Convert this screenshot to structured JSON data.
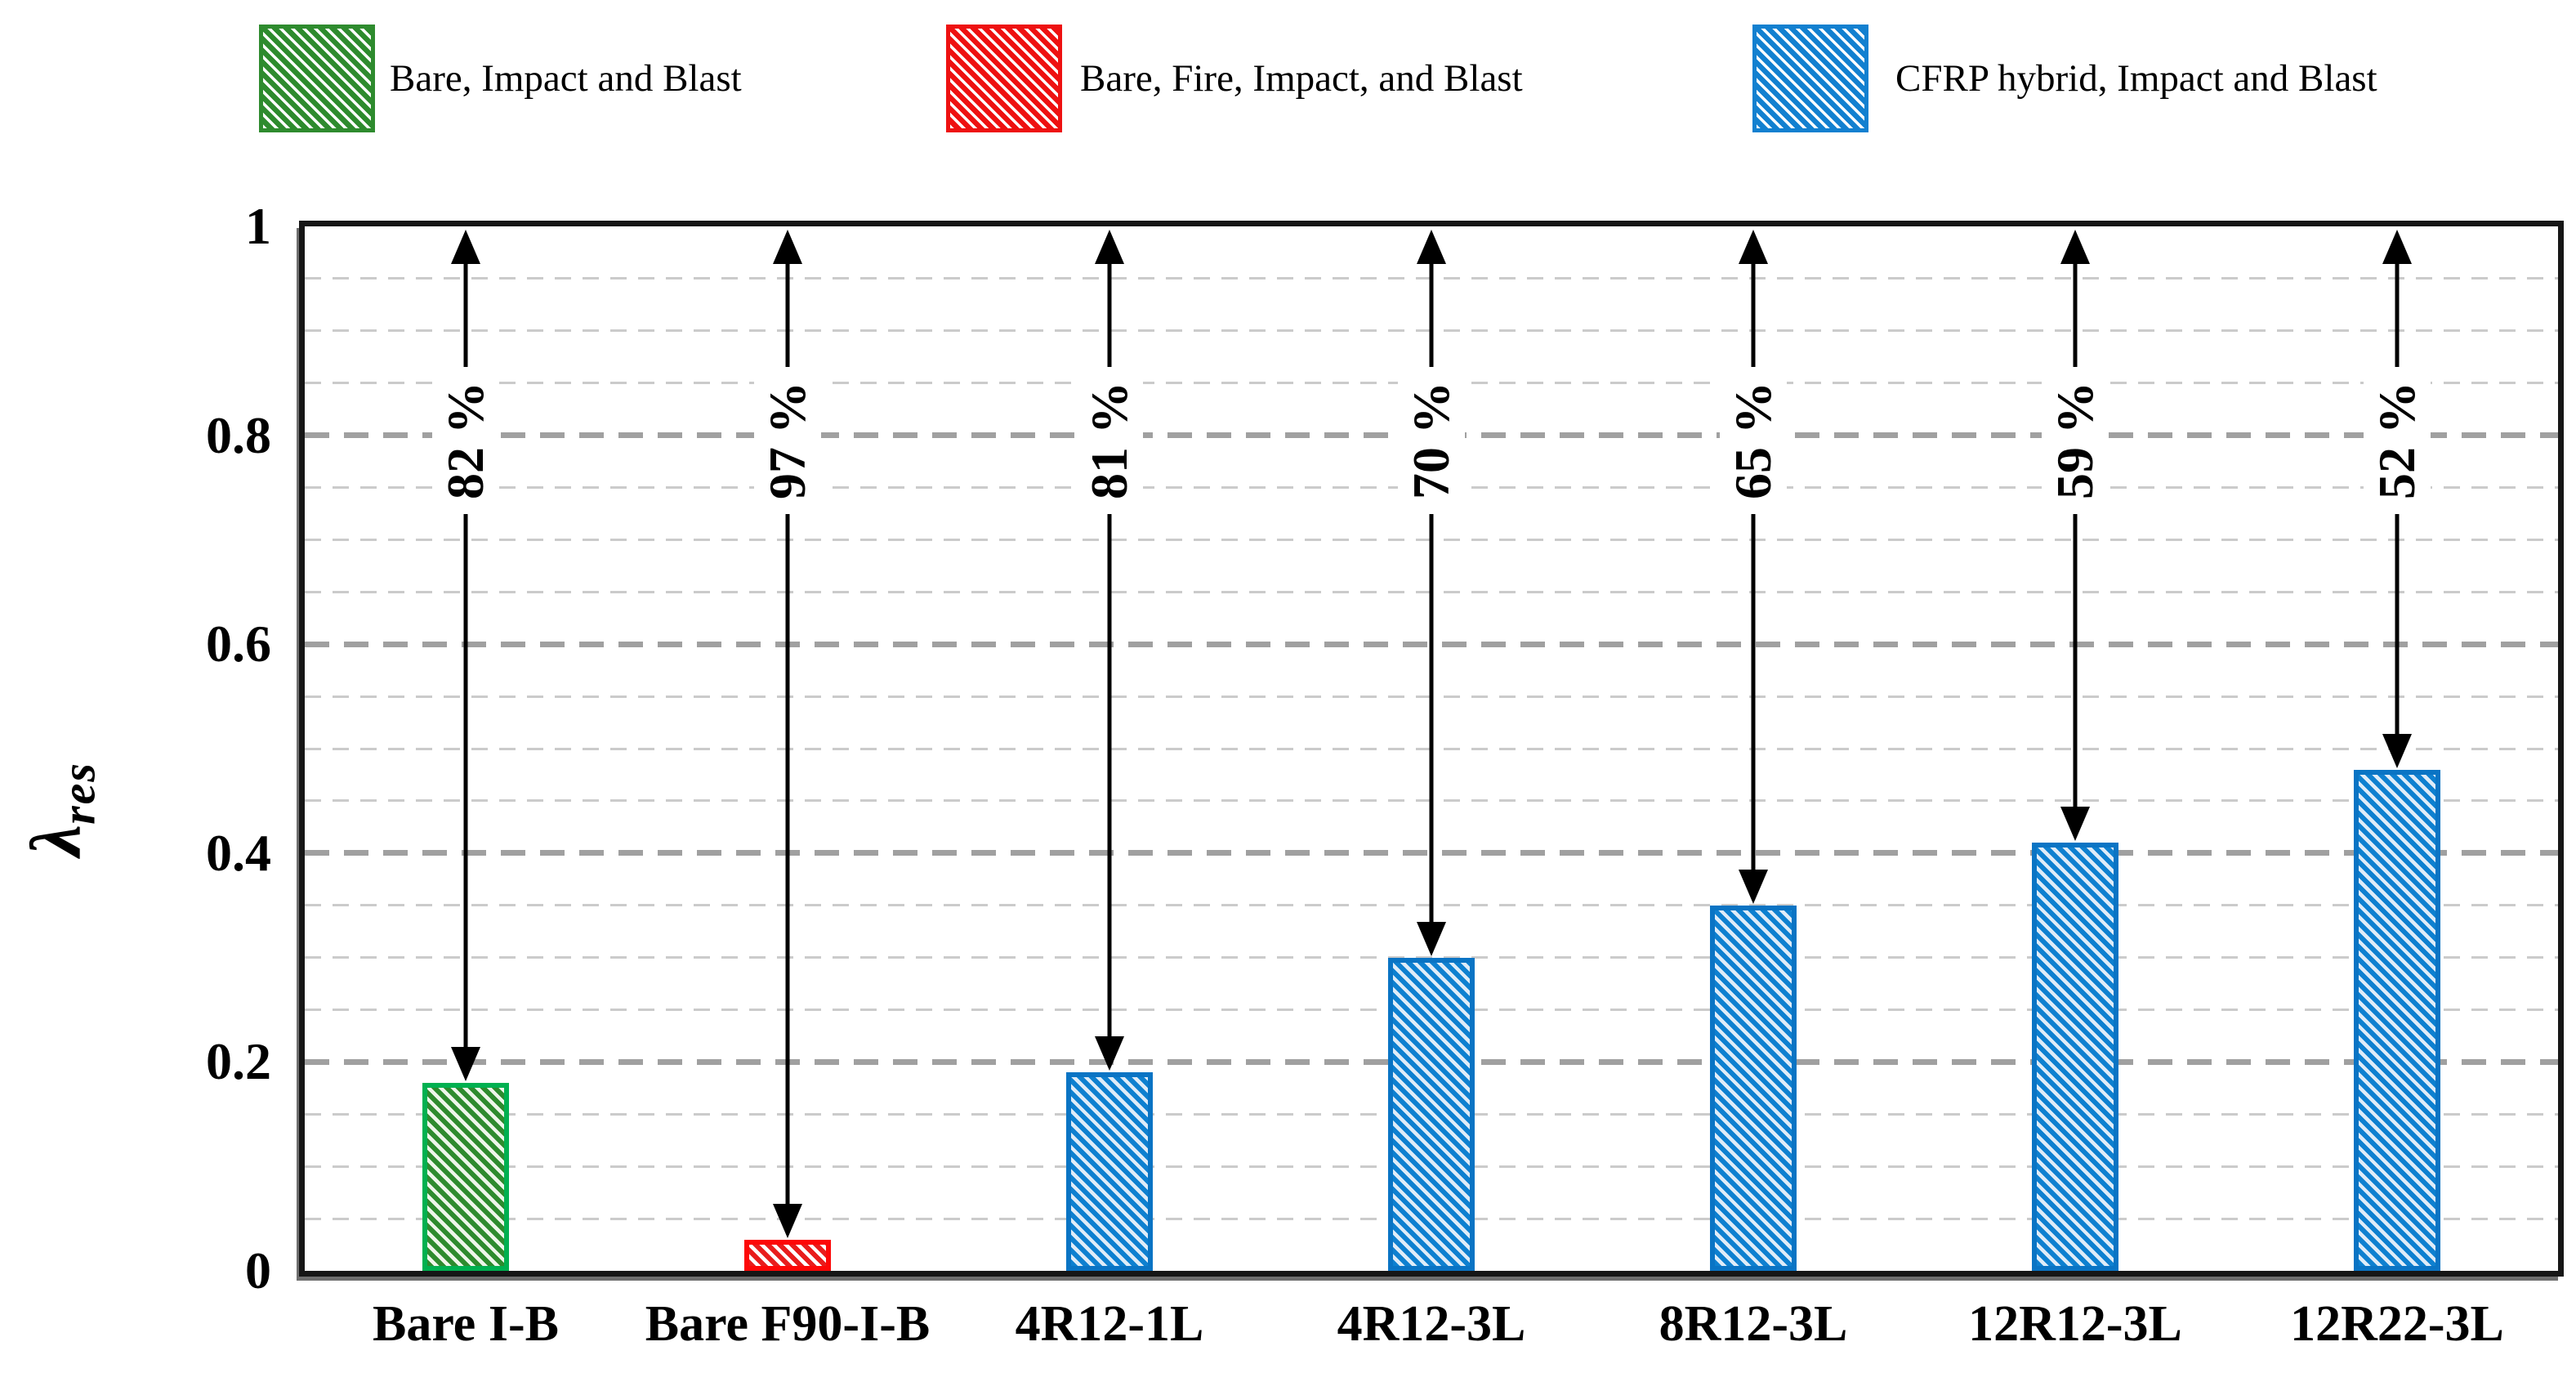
{
  "chart_data": {
    "type": "bar",
    "title": "",
    "ylabel": {
      "symbol": "λ",
      "subscript": "res"
    },
    "ylim": [
      0,
      1
    ],
    "ytick_values": [
      0,
      0.2,
      0.4,
      0.6,
      0.8,
      1
    ],
    "ytick_labels": [
      "0",
      "0.2",
      "0.4",
      "0.6",
      "0.8",
      "1"
    ],
    "minor_grid_step": 0.05,
    "major_grid_values": [
      0.2,
      0.4,
      0.6,
      0.8
    ],
    "grid": "dashed-horizontal",
    "legend_position": "top",
    "categories": [
      "Bare I-B",
      "Bare F90-I-B",
      "4R12-1L",
      "4R12-3L",
      "8R12-3L",
      "12R12-3L",
      "12R22-3L"
    ],
    "values": [
      0.18,
      0.03,
      0.19,
      0.3,
      0.35,
      0.41,
      0.48
    ],
    "reduction_labels": [
      "82 %",
      "97 %",
      "81 %",
      "70 %",
      "65 %",
      "59 %",
      "52 %"
    ],
    "bar_series": [
      "green",
      "red",
      "blue",
      "blue",
      "blue",
      "blue",
      "blue"
    ],
    "series_styles": {
      "green": {
        "border": "#00b050",
        "stripe": "#2e8b2e",
        "bg": "#eef6ea",
        "legend_main": "#2e8b2e"
      },
      "red": {
        "border": "#fd0707",
        "stripe": "#e81c1c",
        "bg": "#ffffff",
        "legend_main": "#ee1111"
      },
      "blue": {
        "border": "#0a74c4",
        "stripe": "#0e80d0",
        "bg": "#dfecf8",
        "legend_main": "#1280d0"
      }
    },
    "legend": [
      {
        "series": "green",
        "label": "Bare, Impact and Blast"
      },
      {
        "series": "red",
        "label": "Bare, Fire, Impact, and Blast"
      },
      {
        "series": "blue",
        "label": "CFRP hybrid, Impact and Blast"
      }
    ]
  }
}
